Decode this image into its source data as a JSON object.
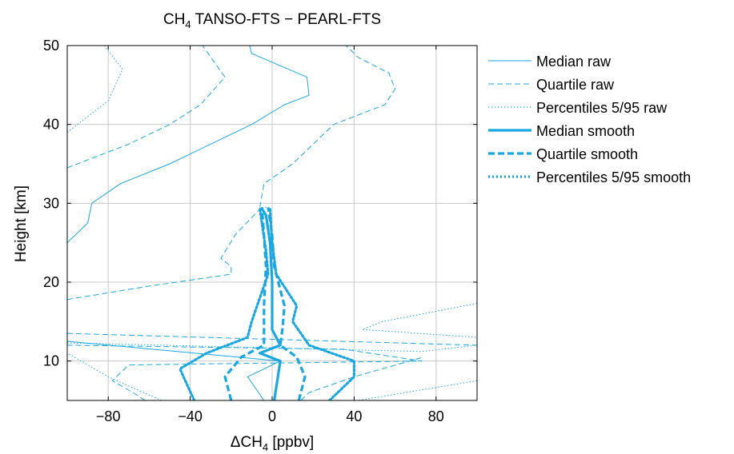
{
  "chart_data": {
    "type": "line",
    "title": "CH",
    "title_sub": "4",
    "title_rest": " TANSO-FTS − PEARL-FTS",
    "xlabel_prefix": "ΔCH",
    "xlabel_sub": "4",
    "xlabel_unit": " [ppbv]",
    "ylabel": "Height [km]",
    "xlim": [
      -100,
      100
    ],
    "ylim": [
      5,
      50
    ],
    "xticks": [
      -80,
      -40,
      0,
      40,
      80
    ],
    "xtick_labels": [
      "−80",
      "−40",
      "0",
      "40",
      "80"
    ],
    "yticks": [
      10,
      20,
      30,
      40,
      50
    ],
    "ytick_labels": [
      "10",
      "20",
      "30",
      "40",
      "50"
    ],
    "grid": true,
    "legend_position": "outside-right",
    "color": "#1aa6e0",
    "series": [
      {
        "name": "Median raw",
        "style": "solid",
        "width": "thin",
        "points": [
          [
            -4,
            5
          ],
          [
            -12,
            8
          ],
          [
            4,
            10
          ],
          [
            -100,
            12.5
          ]
        ]
      },
      {
        "name": "Median raw",
        "style": "solid",
        "width": "thin",
        "points": [
          [
            -100,
            25
          ],
          [
            -90,
            27.5
          ],
          [
            -88,
            30
          ],
          [
            -74,
            32.5
          ],
          [
            -50,
            35
          ],
          [
            -30,
            37.5
          ],
          [
            -10,
            40
          ],
          [
            6,
            42.5
          ],
          [
            18,
            43.7
          ],
          [
            17,
            46
          ],
          [
            -10,
            49
          ],
          [
            -11,
            50
          ]
        ]
      },
      {
        "name": "Quartile raw",
        "style": "dashed",
        "width": "thin",
        "points": [
          [
            -62,
            5
          ],
          [
            -68,
            6
          ],
          [
            -78,
            7.5
          ],
          [
            -70,
            9.5
          ],
          [
            73,
            10
          ],
          [
            35,
            11.5
          ],
          [
            -100,
            12
          ]
        ]
      },
      {
        "name": "Quartile raw",
        "style": "dashed",
        "width": "thin",
        "points": [
          [
            -100,
            17.8
          ],
          [
            -60,
            19.5
          ],
          [
            -20,
            21
          ],
          [
            -20,
            22
          ],
          [
            -25,
            23
          ],
          [
            -18,
            26
          ],
          [
            -7,
            29
          ],
          [
            -3,
            29.5
          ]
        ]
      },
      {
        "name": "Quartile raw",
        "style": "dashed",
        "width": "thin",
        "points": [
          [
            -100,
            34.5
          ],
          [
            -70,
            37.5
          ],
          [
            -50,
            40
          ],
          [
            -35,
            42.5
          ],
          [
            -23,
            46
          ],
          [
            -34,
            50
          ]
        ]
      },
      {
        "name": "Quartile raw",
        "style": "dashed",
        "width": "thin",
        "points": [
          [
            -100,
            13.5
          ],
          [
            100,
            12
          ]
        ]
      },
      {
        "name": "Quartile raw",
        "style": "dashed",
        "width": "thin",
        "points": [
          [
            14,
            5
          ],
          [
            18,
            6
          ],
          [
            40,
            8
          ],
          [
            74,
            10.5
          ]
        ]
      },
      {
        "name": "Quartile raw",
        "style": "dashed",
        "width": "thin",
        "points": [
          [
            -6,
            29.5
          ],
          [
            -4,
            32.5
          ],
          [
            10,
            35
          ],
          [
            30,
            40
          ],
          [
            55,
            42.5
          ],
          [
            60,
            44.5
          ],
          [
            57,
            46.5
          ],
          [
            42,
            48.5
          ],
          [
            36,
            50
          ]
        ]
      },
      {
        "name": "Percentiles 5/95 raw",
        "style": "dotted",
        "width": "thin",
        "points": [
          [
            -100,
            39
          ],
          [
            -80,
            43
          ],
          [
            -73,
            47
          ],
          [
            -82,
            50
          ]
        ]
      },
      {
        "name": "Percentiles 5/95 raw",
        "style": "dotted",
        "width": "thin",
        "points": [
          [
            -54,
            5
          ],
          [
            -80,
            8
          ],
          [
            -100,
            11
          ]
        ]
      },
      {
        "name": "Percentiles 5/95 raw",
        "style": "dotted",
        "width": "thin",
        "points": [
          [
            -100,
            12.3
          ],
          [
            73,
            11.2
          ],
          [
            100,
            12
          ]
        ]
      },
      {
        "name": "Percentiles 5/95 raw",
        "style": "dotted",
        "width": "thin",
        "points": [
          [
            100,
            17.3
          ],
          [
            54,
            15
          ],
          [
            44,
            14
          ],
          [
            100,
            13
          ]
        ]
      },
      {
        "name": "Percentiles 5/95 raw",
        "style": "dotted",
        "width": "thin",
        "points": [
          [
            100,
            7.5
          ],
          [
            65,
            6
          ],
          [
            42,
            5
          ]
        ]
      },
      {
        "name": "Median smooth",
        "style": "solid",
        "width": "thick",
        "points": [
          [
            1,
            5
          ],
          [
            4,
            10
          ],
          [
            -6,
            11
          ],
          [
            4,
            12
          ],
          [
            0,
            14
          ],
          [
            0,
            20
          ],
          [
            -1,
            25
          ],
          [
            -3,
            28.5
          ],
          [
            -5,
            29.3
          ]
        ]
      },
      {
        "name": "Quartile smooth",
        "style": "dashed",
        "width": "thick",
        "points": [
          [
            -20,
            5
          ],
          [
            -23,
            8
          ],
          [
            -15,
            10.5
          ],
          [
            -4,
            12
          ],
          [
            -4,
            14
          ],
          [
            -4,
            17
          ],
          [
            -3,
            22
          ],
          [
            -4,
            26
          ],
          [
            -5,
            29.5
          ]
        ]
      },
      {
        "name": "Quartile smooth",
        "style": "dashed",
        "width": "thick",
        "points": [
          [
            13,
            5
          ],
          [
            16,
            8
          ],
          [
            12,
            10.5
          ],
          [
            4,
            12
          ],
          [
            5,
            14
          ],
          [
            6,
            17
          ],
          [
            1,
            22
          ],
          [
            0,
            26
          ],
          [
            -2,
            29.5
          ]
        ]
      },
      {
        "name": "Percentiles 5/95 smooth",
        "style": "dotted",
        "width": "thick",
        "points": [
          [
            -38,
            5
          ],
          [
            -45,
            9
          ],
          [
            -32,
            11
          ],
          [
            -12,
            13
          ],
          [
            -10,
            15
          ],
          [
            -6,
            18
          ],
          [
            -2,
            21
          ],
          [
            -3,
            24
          ],
          [
            -6,
            29.3
          ]
        ]
      },
      {
        "name": "Percentiles 5/95 smooth",
        "style": "dotted",
        "width": "thick",
        "points": [
          [
            28,
            5
          ],
          [
            40,
            8
          ],
          [
            40,
            10
          ],
          [
            18,
            12
          ],
          [
            10,
            15
          ],
          [
            12,
            17
          ],
          [
            2,
            21
          ],
          [
            0,
            25
          ],
          [
            -1,
            29.3
          ]
        ]
      }
    ],
    "legend": [
      {
        "label": "Median raw",
        "style": "solid",
        "width": "thin"
      },
      {
        "label": "Quartile raw",
        "style": "dashed",
        "width": "thin"
      },
      {
        "label": "Percentiles 5/95 raw",
        "style": "dotted",
        "width": "thin"
      },
      {
        "label": "Median smooth",
        "style": "solid",
        "width": "thick"
      },
      {
        "label": "Quartile smooth",
        "style": "dashed",
        "width": "thick"
      },
      {
        "label": "Percentiles 5/95 smooth",
        "style": "dotted",
        "width": "thick"
      }
    ]
  }
}
